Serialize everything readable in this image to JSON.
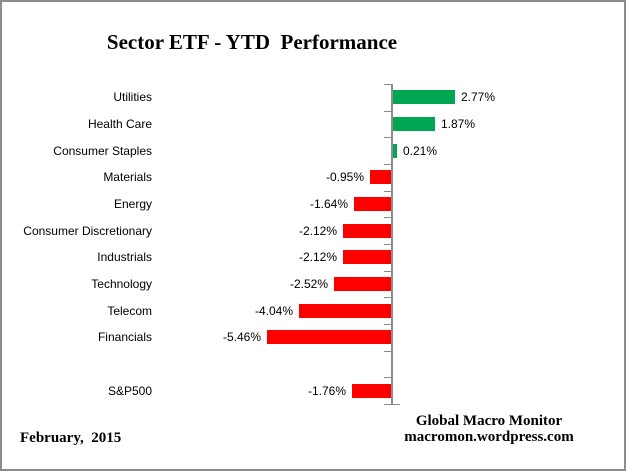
{
  "title": "Sector ETF - YTD  Performance",
  "chart_data": {
    "type": "bar",
    "orientation": "horizontal",
    "title": "Sector ETF - YTD  Performance",
    "unit": "%",
    "categories": [
      "Utilities",
      "Health Care",
      "Consumer Staples",
      "Materials",
      "Energy",
      "Consumer Discretionary",
      "Industrials",
      "Technology",
      "Telecom",
      "Financials",
      "",
      "S&P500"
    ],
    "values": [
      2.77,
      1.87,
      0.21,
      -0.95,
      -1.64,
      -2.12,
      -2.12,
      -2.52,
      -4.04,
      -5.46,
      null,
      -1.76
    ],
    "value_labels": [
      "2.77%",
      "1.87%",
      "0.21%",
      "-0.95%",
      "-1.64%",
      "-2.12%",
      "-2.12%",
      "-2.52%",
      "-4.04%",
      "-5.46%",
      "",
      "-1.76%"
    ],
    "positive_color": "#00A651",
    "negative_color": "#FF0000",
    "axis_color": "#8C8C8C",
    "text_color": "#000000",
    "frame_border_color": "#8C8C8C",
    "grid": "off",
    "legend": "none",
    "value_axis_labels_visible": false
  },
  "footer": {
    "date": "February,  2015",
    "credit_line1": "Global Macro Monitor",
    "credit_line2": "macromon.wordpress.com"
  }
}
